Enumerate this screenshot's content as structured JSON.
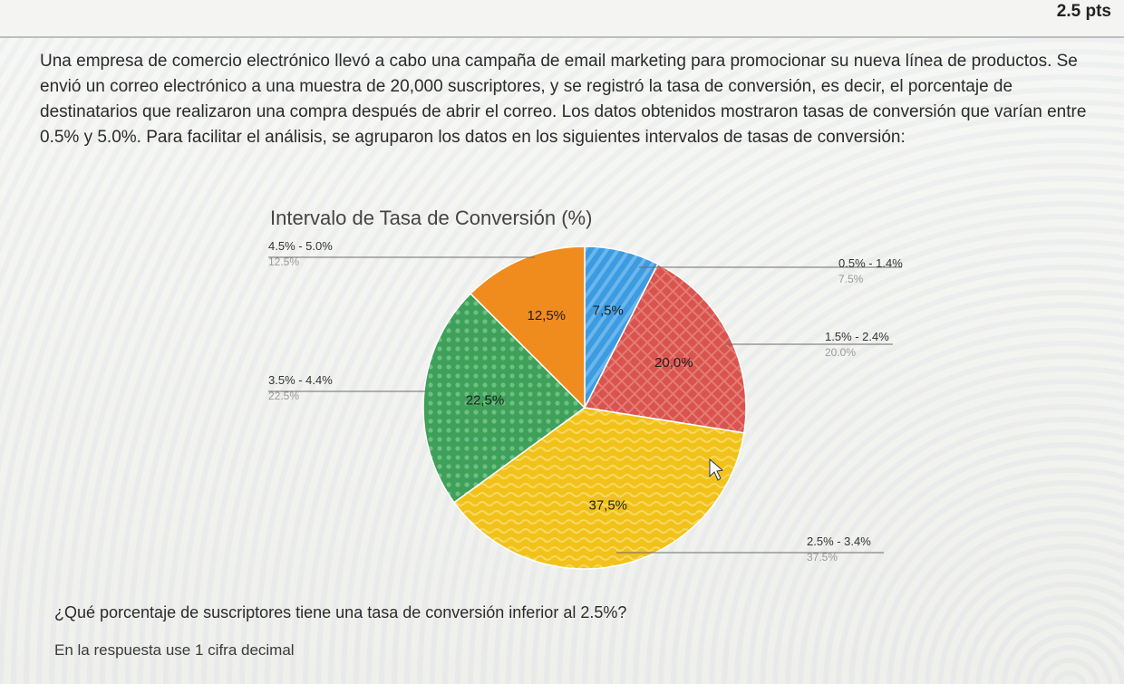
{
  "header": {
    "points": "2.5 pts"
  },
  "question": {
    "paragraph": "Una empresa de comercio electrónico llevó a cabo una campaña de email marketing para promocionar su nueva línea de productos. Se envió un correo electrónico a una muestra de 20,000 suscriptores, y se registró la tasa de conversión, es decir, el porcentaje de destinatarios que realizaron una compra después de abrir el correo. Los datos obtenidos mostraron tasas de conversión que varían entre 0.5% y 5.0%. Para facilitar el análisis, se agruparon los datos en los siguientes intervalos de tasas de conversión:",
    "subquestion": "¿Qué porcentaje de suscriptores tiene una tasa de conversión inferior al 2.5%?",
    "hint": "En la respuesta use 1 cifra decimal"
  },
  "chart_data": {
    "type": "pie",
    "title": "Intervalo de Tasa de Conversión (%)",
    "slices": [
      {
        "category": "0.5% - 1.4%",
        "value": 7.5,
        "data_label": "7,5%",
        "legend_value": "7.5%",
        "color": "#3d9be0",
        "pattern": "stripes"
      },
      {
        "category": "1.5% - 2.4%",
        "value": 20.0,
        "data_label": "20,0%",
        "legend_value": "20.0%",
        "color": "#d9534f",
        "pattern": "crosshatch"
      },
      {
        "category": "2.5% - 3.4%",
        "value": 37.5,
        "data_label": "37,5%",
        "legend_value": "37.5%",
        "color": "#f2c21b",
        "pattern": "waves"
      },
      {
        "category": "3.5% - 4.4%",
        "value": 22.5,
        "data_label": "22,5%",
        "legend_value": "22.5%",
        "color": "#3fa05a",
        "pattern": "dots"
      },
      {
        "category": "4.5% - 5.0%",
        "value": 12.5,
        "data_label": "12,5%",
        "legend_value": "12.5%",
        "color": "#f08c1e",
        "pattern": "solid"
      }
    ],
    "start_angle_deg": 0,
    "direction": "clockwise",
    "legend": "callouts"
  }
}
